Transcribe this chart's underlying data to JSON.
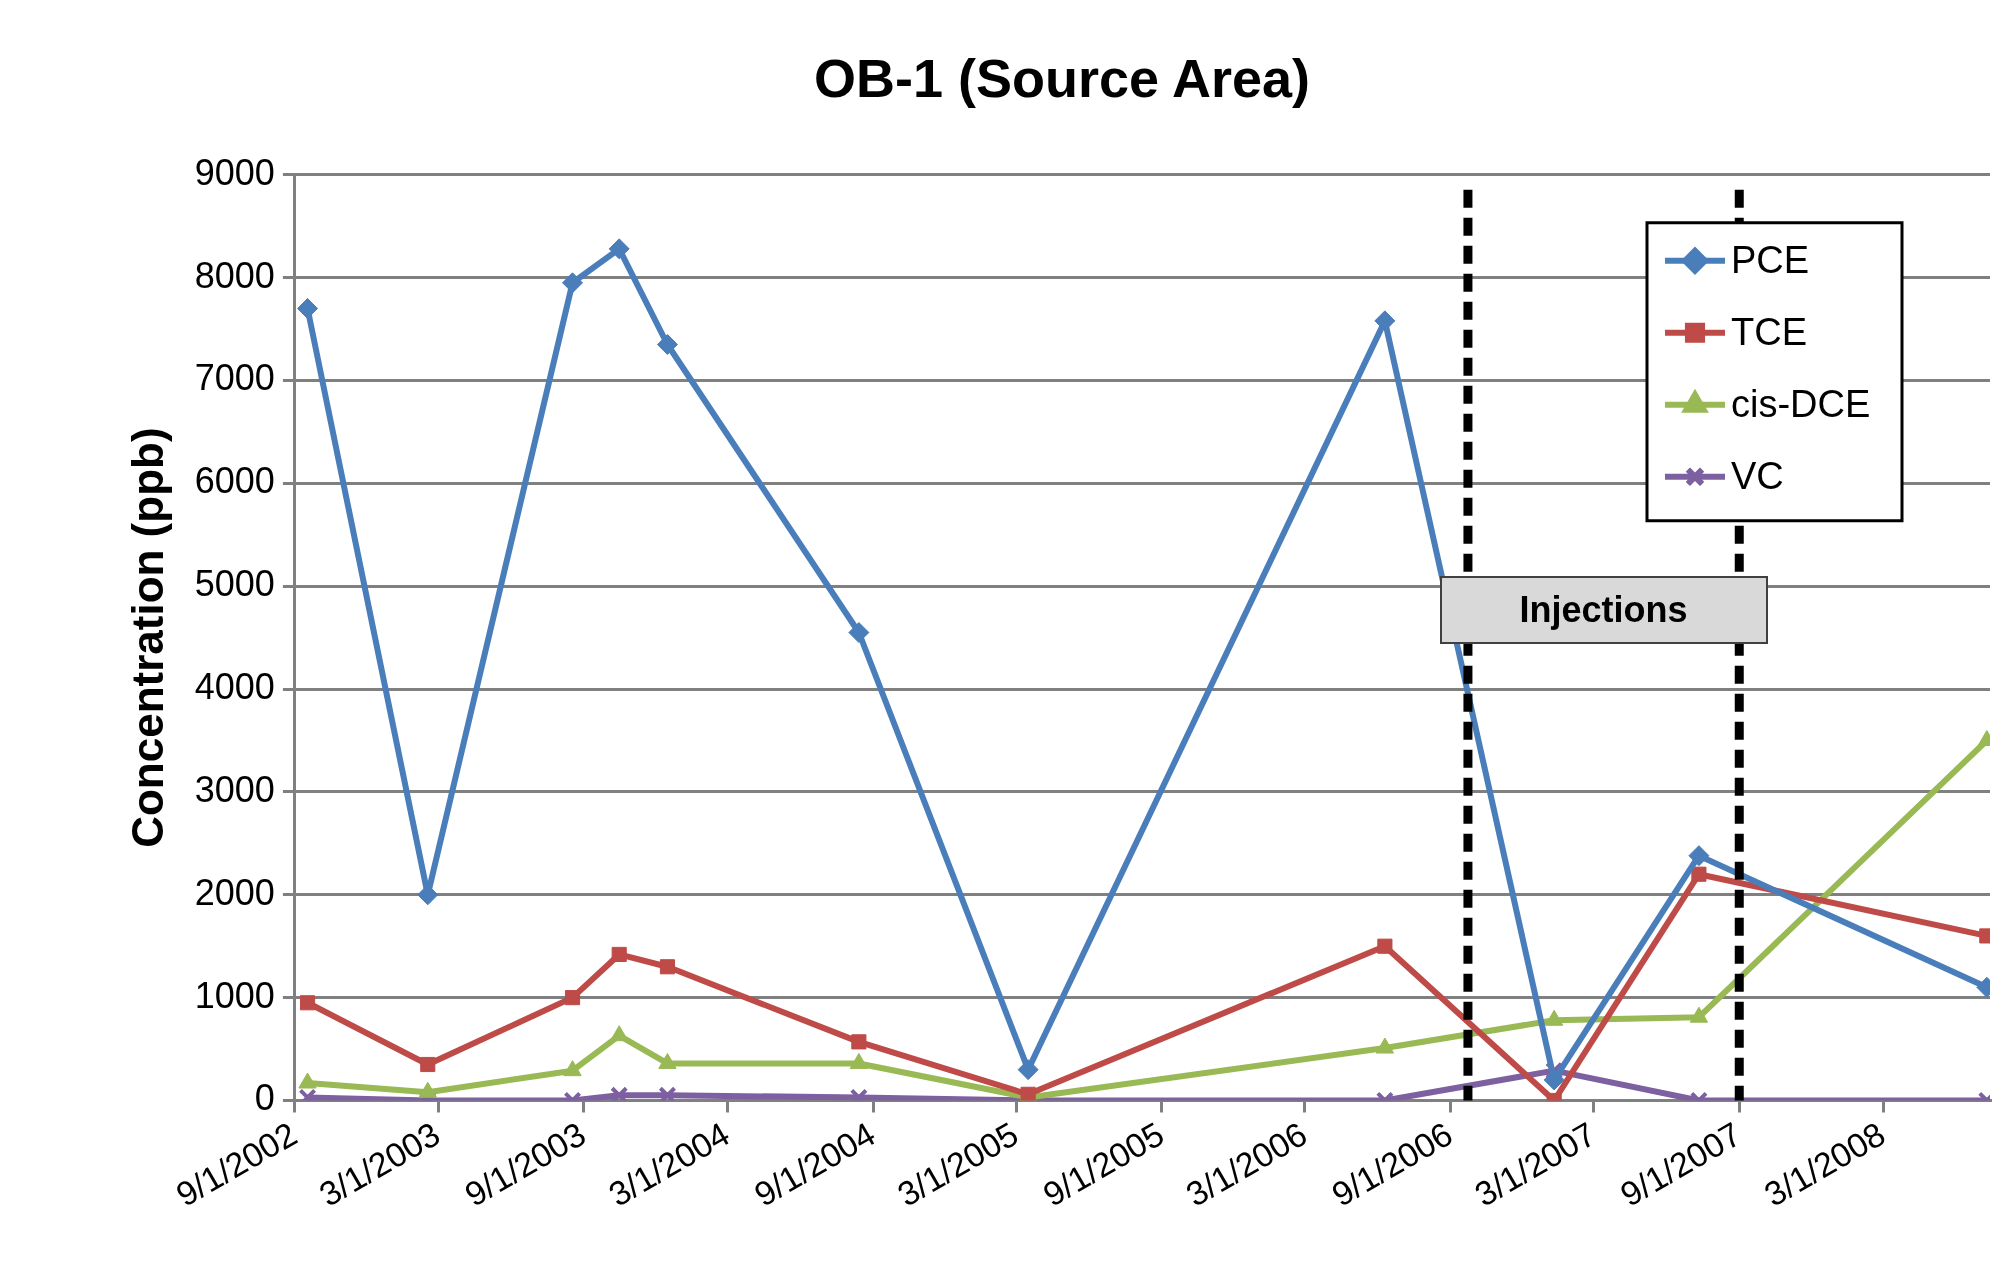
{
  "chart_data": {
    "type": "line",
    "title": "OB-1 (Source Area)",
    "ylabel": "Concentration (ppb)",
    "x": [
      "2002-09-17",
      "2003-02-16",
      "2003-08-18",
      "2003-10-16",
      "2003-12-16",
      "2004-08-14",
      "2005-03-16",
      "2006-06-10",
      "2007-01-10",
      "2007-07-12",
      "2008-07-10"
    ],
    "series": [
      {
        "name": "PCE",
        "color": "#4a7ebb",
        "marker": "diamond",
        "values": [
          7700,
          2000,
          7950,
          8280,
          7350,
          4550,
          300,
          7580,
          200,
          2380,
          1100
        ]
      },
      {
        "name": "TCE",
        "color": "#be4b48",
        "marker": "square",
        "values": [
          950,
          350,
          1000,
          1420,
          1300,
          570,
          60,
          1500,
          0,
          2200,
          1600
        ]
      },
      {
        "name": "cis-DCE",
        "color": "#98b954",
        "marker": "triangle",
        "values": [
          170,
          80,
          290,
          630,
          360,
          360,
          30,
          510,
          780,
          810,
          3500
        ]
      },
      {
        "name": "VC",
        "color": "#7d60a0",
        "marker": "cross",
        "values": [
          30,
          0,
          0,
          50,
          50,
          30,
          0,
          0,
          290,
          0,
          0
        ]
      }
    ],
    "xlim": [
      "2002-09-01",
      "2008-07-14"
    ],
    "xticks": [
      {
        "value": "2002-09-01",
        "label": "9/1/2002"
      },
      {
        "value": "2003-03-01",
        "label": "3/1/2003"
      },
      {
        "value": "2003-09-01",
        "label": "9/1/2003"
      },
      {
        "value": "2004-03-01",
        "label": "3/1/2004"
      },
      {
        "value": "2004-09-01",
        "label": "9/1/2004"
      },
      {
        "value": "2005-03-01",
        "label": "3/1/2005"
      },
      {
        "value": "2005-09-01",
        "label": "9/1/2005"
      },
      {
        "value": "2006-03-01",
        "label": "3/1/2006"
      },
      {
        "value": "2006-09-01",
        "label": "9/1/2006"
      },
      {
        "value": "2007-03-01",
        "label": "3/1/2007"
      },
      {
        "value": "2007-09-01",
        "label": "9/1/2007"
      },
      {
        "value": "2008-03-01",
        "label": "3/1/2008"
      }
    ],
    "ylim": [
      0,
      9000
    ],
    "yticks": [
      0,
      1000,
      2000,
      3000,
      4000,
      5000,
      6000,
      7000,
      8000,
      9000
    ],
    "grid": "y",
    "legend": "top right",
    "line_style": "solid",
    "ref_lines": [
      {
        "axis": "x",
        "value": "2006-09-23",
        "color": "#000000",
        "line_style": "dashed"
      },
      {
        "axis": "x",
        "value": "2007-09-01",
        "color": "#000000",
        "line_style": "dashed"
      }
    ],
    "annotations": [
      "Injections"
    ]
  }
}
